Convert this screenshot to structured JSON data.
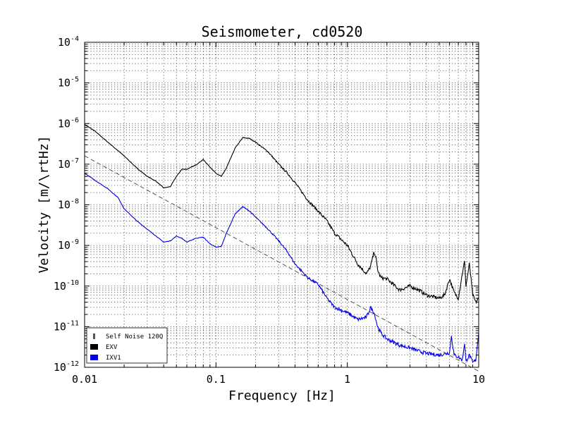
{
  "chart_data": {
    "type": "line",
    "title": "Seismometer, cd0520",
    "xlabel": "Frequency [Hz]",
    "ylabel": "Velocity [m/\\rtHz]",
    "x_scale": "log",
    "y_scale": "log",
    "xlim": [
      0.01,
      10
    ],
    "ylim": [
      1e-12,
      0.0001
    ],
    "grid": true,
    "legend_position": "lower-left",
    "x_ticks": [
      {
        "value": 0.01,
        "label": "0.01"
      },
      {
        "value": 0.1,
        "label": "0.1"
      },
      {
        "value": 1,
        "label": "1"
      },
      {
        "value": 10,
        "label": "10"
      }
    ],
    "y_ticks": [
      {
        "value": 1e-12,
        "base": "10",
        "exp": "-12"
      },
      {
        "value": 1e-11,
        "base": "10",
        "exp": "-11"
      },
      {
        "value": 1e-10,
        "base": "10",
        "exp": "-10"
      },
      {
        "value": 1e-09,
        "base": "10",
        "exp": "-9"
      },
      {
        "value": 1e-08,
        "base": "10",
        "exp": "-8"
      },
      {
        "value": 1e-07,
        "base": "10",
        "exp": "-7"
      },
      {
        "value": 1e-06,
        "base": "10",
        "exp": "-6"
      },
      {
        "value": 1e-05,
        "base": "10",
        "exp": "-5"
      },
      {
        "value": 0.0001,
        "base": "10",
        "exp": "-4"
      }
    ],
    "series": [
      {
        "name": "Self Noise 120Q",
        "color": "#555555",
        "style": "dashed",
        "x": [
          0.01,
          10
        ],
        "y": [
          1.6e-07,
          8e-13
        ]
      },
      {
        "name": "EXV",
        "color": "#000000",
        "style": "solid",
        "x": [
          0.01,
          0.012,
          0.015,
          0.02,
          0.025,
          0.03,
          0.035,
          0.04,
          0.045,
          0.05,
          0.055,
          0.06,
          0.07,
          0.08,
          0.09,
          0.1,
          0.11,
          0.12,
          0.14,
          0.16,
          0.18,
          0.2,
          0.25,
          0.3,
          0.35,
          0.4,
          0.5,
          0.6,
          0.7,
          0.8,
          1.0,
          1.2,
          1.4,
          1.5,
          1.6,
          1.65,
          1.7,
          1.8,
          2.0,
          2.5,
          3.0,
          3.5,
          4.0,
          5.0,
          5.5,
          6.0,
          6.5,
          7.0,
          7.5,
          7.8,
          8.0,
          8.5,
          9.0,
          9.5,
          10
        ],
        "y": [
          9.5e-07,
          6.5e-07,
          3.5e-07,
          1.6e-07,
          8e-08,
          5e-08,
          3.8e-08,
          2.6e-08,
          2.8e-08,
          5e-08,
          7.5e-08,
          7.5e-08,
          9.5e-08,
          1.3e-07,
          8.5e-08,
          6e-08,
          5e-08,
          8e-08,
          2.5e-07,
          4.5e-07,
          4.3e-07,
          3.5e-07,
          2e-07,
          1e-07,
          6e-08,
          3.5e-08,
          1.3e-08,
          7e-09,
          4e-09,
          2e-09,
          1e-09,
          3.5e-10,
          2e-10,
          3e-10,
          7e-10,
          5e-10,
          2.5e-10,
          1.6e-10,
          1.5e-10,
          8e-11,
          1e-10,
          8e-11,
          6e-11,
          5e-11,
          6e-11,
          1.5e-10,
          7e-11,
          5e-11,
          2e-10,
          4e-10,
          1e-10,
          3.5e-10,
          6e-11,
          4e-11,
          5e-11
        ]
      },
      {
        "name": "IXV1",
        "color": "#0000e0",
        "style": "solid",
        "x": [
          0.01,
          0.012,
          0.015,
          0.018,
          0.02,
          0.025,
          0.03,
          0.035,
          0.04,
          0.045,
          0.05,
          0.055,
          0.06,
          0.07,
          0.08,
          0.09,
          0.1,
          0.11,
          0.12,
          0.14,
          0.16,
          0.18,
          0.2,
          0.25,
          0.3,
          0.35,
          0.4,
          0.5,
          0.6,
          0.7,
          0.8,
          1.0,
          1.2,
          1.4,
          1.5,
          1.6,
          1.65,
          1.7,
          1.8,
          2.0,
          2.5,
          3.0,
          3.5,
          4.0,
          5.0,
          6.0,
          6.2,
          6.5,
          7.0,
          7.5,
          7.8,
          8.0,
          8.5,
          9.0,
          9.5,
          10
        ],
        "y": [
          6e-08,
          4e-08,
          2.5e-08,
          1.5e-08,
          8e-09,
          4e-09,
          2.5e-09,
          1.7e-09,
          1.2e-09,
          1.3e-09,
          1.7e-09,
          1.5e-09,
          1.2e-09,
          1.5e-09,
          1.6e-09,
          1.1e-09,
          9e-10,
          9.5e-10,
          2e-09,
          6e-09,
          9e-09,
          7e-09,
          5e-09,
          2.5e-09,
          1.3e-09,
          7e-10,
          3.5e-10,
          1.6e-10,
          1.1e-10,
          5e-11,
          3e-11,
          2.2e-11,
          1.5e-11,
          1.7e-11,
          3e-11,
          2.2e-11,
          1.5e-11,
          1e-11,
          7e-12,
          5e-12,
          3.5e-12,
          3e-12,
          2.5e-12,
          2.2e-12,
          2e-12,
          2.3e-12,
          6e-12,
          2e-12,
          1.8e-12,
          1.5e-12,
          4e-12,
          1.4e-12,
          2e-12,
          1.3e-12,
          1.5e-12,
          7e-12
        ]
      }
    ]
  }
}
